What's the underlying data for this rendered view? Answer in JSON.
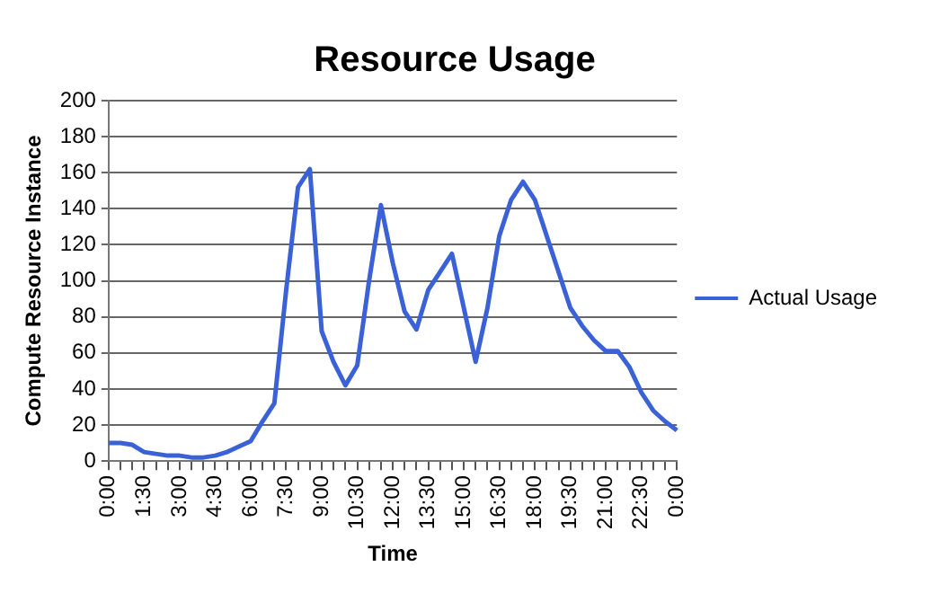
{
  "chart_data": {
    "type": "line",
    "title": "Resource Usage",
    "xlabel": "Time",
    "ylabel": "Compute Resource Instance",
    "categories": [
      "0:00",
      null,
      null,
      "1:30",
      null,
      null,
      "3:00",
      null,
      null,
      "4:30",
      null,
      null,
      "6:00",
      null,
      null,
      "7:30",
      null,
      null,
      "9:00",
      null,
      null,
      "10:30",
      null,
      null,
      "12:00",
      null,
      null,
      "13:30",
      null,
      null,
      "15:00",
      null,
      null,
      "16:30",
      null,
      null,
      "18:00",
      null,
      null,
      "19:30",
      null,
      null,
      "21:00",
      null,
      null,
      "22:30",
      null,
      null,
      "0:00"
    ],
    "series": [
      {
        "name": "Actual Usage",
        "color": "#3a62d6",
        "values": [
          10,
          10,
          9,
          5,
          4,
          3,
          3,
          2,
          2,
          3,
          5,
          8,
          11,
          22,
          32,
          95,
          152,
          162,
          72,
          55,
          42,
          53,
          100,
          142,
          110,
          83,
          73,
          95,
          105,
          115,
          85,
          55,
          85,
          125,
          145,
          155,
          145,
          125,
          105,
          85,
          75,
          67,
          61,
          61,
          52,
          38,
          28,
          22,
          17
        ]
      }
    ],
    "ylim": [
      0,
      200
    ],
    "yticks": [
      0,
      20,
      40,
      60,
      80,
      100,
      120,
      140,
      160,
      180,
      200
    ],
    "grid": "y",
    "legend": "right",
    "marker": "none",
    "line_style": "solid"
  }
}
